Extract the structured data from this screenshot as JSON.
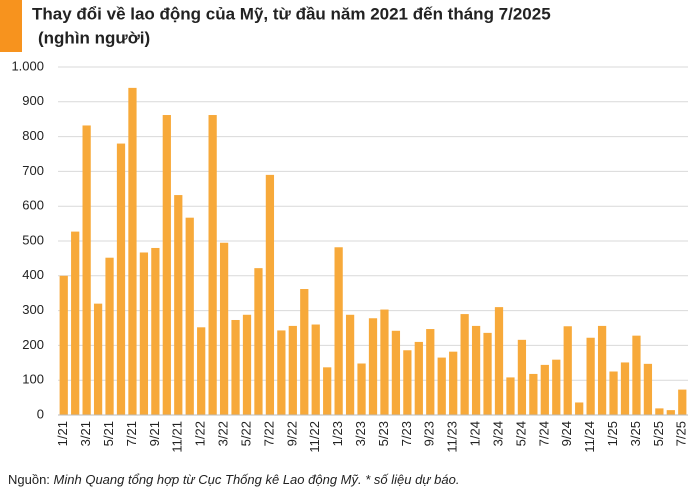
{
  "chart_data": {
    "type": "bar",
    "title": "Thay đổi về lao động của Mỹ, từ đầu năm 2021 đến tháng 7/2025",
    "subtitle": "(nghìn người)",
    "source_label": "Nguồn:",
    "source_text": "Minh Quang tổng hợp từ Cục Thống kê Lao động Mỹ. * số liệu dự báo.",
    "categories": [
      "1/21",
      null,
      "3/21",
      null,
      "5/21",
      null,
      "7/21",
      null,
      "9/21",
      null,
      "11/21",
      null,
      "1/22",
      null,
      "3/22",
      null,
      "5/22",
      null,
      "7/22",
      null,
      "9/22",
      null,
      "11/22",
      null,
      "1/23",
      null,
      "3/23",
      null,
      "5/23",
      null,
      "7/23",
      null,
      "9/23",
      null,
      "11/23",
      null,
      "1/24",
      null,
      "3/24",
      null,
      "5/24",
      null,
      "7/24",
      null,
      "9/24",
      null,
      "11/24",
      null,
      "1/25",
      null,
      "3/25",
      null,
      "5/25",
      null,
      "7/25"
    ],
    "values": [
      400,
      527,
      832,
      320,
      452,
      780,
      940,
      467,
      480,
      862,
      632,
      567,
      252,
      862,
      495,
      273,
      288,
      422,
      690,
      243,
      256,
      362,
      260,
      137,
      482,
      288,
      148,
      278,
      303,
      242,
      186,
      210,
      247,
      165,
      182,
      290,
      256,
      236,
      310,
      108,
      216,
      118,
      144,
      159,
      255,
      36,
      222,
      256,
      125,
      151,
      228,
      147,
      19,
      14,
      73
    ],
    "color": "#f7a93a",
    "ylim": [
      0,
      1000
    ],
    "yticks": [
      0,
      100,
      200,
      300,
      400,
      500,
      600,
      700,
      800,
      900,
      {
        "value": 1000,
        "label": "1.000"
      }
    ],
    "grid": true
  }
}
